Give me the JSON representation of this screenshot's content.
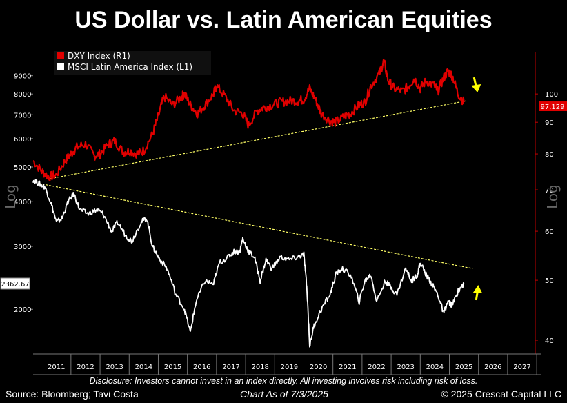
{
  "chart_data": {
    "type": "line",
    "title": "US Dollar vs. Latin American Equities",
    "left_axis": {
      "scale": "log",
      "label": "Log",
      "ylim": [
        1500,
        10500
      ],
      "ticks": [
        2000,
        3000,
        4000,
        5000,
        6000,
        7000,
        8000,
        9000
      ],
      "last_value_tag": "2362.67"
    },
    "right_axis": {
      "scale": "log",
      "label": "Log",
      "ylim": [
        38,
        117
      ],
      "ticks": [
        40,
        50,
        60,
        70,
        80,
        90,
        100
      ],
      "last_value_tag": "97.129"
    },
    "x_axis": {
      "range": [
        2010.7,
        2027.95
      ],
      "years": [
        "2011",
        "2012",
        "2013",
        "2014",
        "2015",
        "2016",
        "2017",
        "2018",
        "2019",
        "2020",
        "2021",
        "2022",
        "2023",
        "2024",
        "2025",
        "2026",
        "2027"
      ]
    },
    "series": [
      {
        "name": "DXY Index (R1)",
        "axis": "right",
        "color": "#e00000",
        "points": [
          [
            2010.7,
            78
          ],
          [
            2011.0,
            75
          ],
          [
            2011.25,
            73.5
          ],
          [
            2011.5,
            74
          ],
          [
            2011.8,
            78
          ],
          [
            2012.0,
            80
          ],
          [
            2012.2,
            82
          ],
          [
            2012.5,
            83
          ],
          [
            2012.8,
            79.5
          ],
          [
            2013.0,
            80
          ],
          [
            2013.3,
            83
          ],
          [
            2013.5,
            84
          ],
          [
            2013.8,
            80.5
          ],
          [
            2014.0,
            81
          ],
          [
            2014.3,
            80
          ],
          [
            2014.5,
            81
          ],
          [
            2014.8,
            86
          ],
          [
            2015.0,
            92
          ],
          [
            2015.2,
            99
          ],
          [
            2015.5,
            96
          ],
          [
            2015.8,
            99
          ],
          [
            2015.9,
            100
          ],
          [
            2016.1,
            96
          ],
          [
            2016.35,
            93
          ],
          [
            2016.6,
            96
          ],
          [
            2016.9,
            100
          ],
          [
            2017.0,
            103
          ],
          [
            2017.3,
            99
          ],
          [
            2017.6,
            94
          ],
          [
            2017.9,
            93
          ],
          [
            2018.1,
            89
          ],
          [
            2018.4,
            94
          ],
          [
            2018.6,
            95
          ],
          [
            2018.9,
            96
          ],
          [
            2019.2,
            97
          ],
          [
            2019.5,
            97.5
          ],
          [
            2019.8,
            97.5
          ],
          [
            2020.0,
            98
          ],
          [
            2020.2,
            102
          ],
          [
            2020.4,
            98
          ],
          [
            2020.6,
            93
          ],
          [
            2020.9,
            90.5
          ],
          [
            2021.1,
            90
          ],
          [
            2021.4,
            92
          ],
          [
            2021.6,
            93
          ],
          [
            2021.9,
            96
          ],
          [
            2022.1,
            97
          ],
          [
            2022.3,
            103
          ],
          [
            2022.6,
            108
          ],
          [
            2022.75,
            113
          ],
          [
            2022.9,
            105
          ],
          [
            2023.1,
            102
          ],
          [
            2023.4,
            101
          ],
          [
            2023.6,
            103
          ],
          [
            2023.8,
            106
          ],
          [
            2024.0,
            102
          ],
          [
            2024.2,
            105
          ],
          [
            2024.5,
            103
          ],
          [
            2024.6,
            101
          ],
          [
            2024.8,
            106
          ],
          [
            2024.95,
            109
          ],
          [
            2025.1,
            107
          ],
          [
            2025.3,
            100
          ],
          [
            2025.5,
            97
          ]
        ]
      },
      {
        "name": "MSCI Latin America Index (L1)",
        "axis": "left",
        "color": "#ffffff",
        "points": [
          [
            2010.7,
            4600
          ],
          [
            2010.9,
            4500
          ],
          [
            2011.1,
            4400
          ],
          [
            2011.3,
            4000
          ],
          [
            2011.5,
            3500
          ],
          [
            2011.7,
            3600
          ],
          [
            2011.9,
            4000
          ],
          [
            2012.1,
            4200
          ],
          [
            2012.3,
            3800
          ],
          [
            2012.6,
            3700
          ],
          [
            2012.9,
            3800
          ],
          [
            2013.1,
            3700
          ],
          [
            2013.4,
            3300
          ],
          [
            2013.6,
            3500
          ],
          [
            2013.9,
            3200
          ],
          [
            2014.1,
            3100
          ],
          [
            2014.4,
            3500
          ],
          [
            2014.6,
            3600
          ],
          [
            2014.8,
            3000
          ],
          [
            2015.0,
            2800
          ],
          [
            2015.3,
            2600
          ],
          [
            2015.6,
            2200
          ],
          [
            2015.9,
            2000
          ],
          [
            2016.1,
            1720
          ],
          [
            2016.3,
            2100
          ],
          [
            2016.6,
            2400
          ],
          [
            2016.9,
            2350
          ],
          [
            2017.1,
            2700
          ],
          [
            2017.4,
            2800
          ],
          [
            2017.6,
            2900
          ],
          [
            2017.8,
            2900
          ],
          [
            2017.9,
            3150
          ],
          [
            2018.1,
            2900
          ],
          [
            2018.3,
            2800
          ],
          [
            2018.5,
            2400
          ],
          [
            2018.7,
            2750
          ],
          [
            2018.9,
            2600
          ],
          [
            2019.2,
            2800
          ],
          [
            2019.5,
            2750
          ],
          [
            2019.8,
            2800
          ],
          [
            2020.0,
            2850
          ],
          [
            2020.1,
            2300
          ],
          [
            2020.2,
            1580
          ],
          [
            2020.35,
            1800
          ],
          [
            2020.6,
            2000
          ],
          [
            2020.9,
            2200
          ],
          [
            2021.1,
            2500
          ],
          [
            2021.3,
            2600
          ],
          [
            2021.6,
            2500
          ],
          [
            2021.9,
            2100
          ],
          [
            2022.1,
            2400
          ],
          [
            2022.3,
            2500
          ],
          [
            2022.5,
            2100
          ],
          [
            2022.8,
            2400
          ],
          [
            2023.0,
            2300
          ],
          [
            2023.2,
            2200
          ],
          [
            2023.5,
            2600
          ],
          [
            2023.7,
            2400
          ],
          [
            2023.9,
            2500
          ],
          [
            2024.0,
            2700
          ],
          [
            2024.2,
            2500
          ],
          [
            2024.4,
            2350
          ],
          [
            2024.6,
            2200
          ],
          [
            2024.8,
            1950
          ],
          [
            2024.95,
            2100
          ],
          [
            2025.1,
            2050
          ],
          [
            2025.3,
            2250
          ],
          [
            2025.5,
            2360
          ]
        ]
      }
    ],
    "trendlines": [
      {
        "name": "DXY trend",
        "color": "#ffff66",
        "axis": "right",
        "points": [
          [
            2011.3,
            73
          ],
          [
            2025.6,
            97.5
          ]
        ]
      },
      {
        "name": "MSCI trend",
        "color": "#ffff66",
        "axis": "left",
        "points": [
          [
            2010.9,
            4500
          ],
          [
            2025.8,
            2600
          ]
        ]
      }
    ],
    "arrows": [
      {
        "direction": "down",
        "color": "#ffff00"
      },
      {
        "direction": "up",
        "color": "#ffff00"
      }
    ],
    "legend": {
      "placement": "top-left"
    }
  },
  "footer": {
    "disclosure": "Disclosure: Investors cannot invest in an index directly. All investing involves risk including risk of loss.",
    "source": "Source: Bloomberg; Tavi Costa",
    "date": "Chart As of 7/3/2025",
    "copyright": "© 2025 Crescat Capital LLC"
  }
}
